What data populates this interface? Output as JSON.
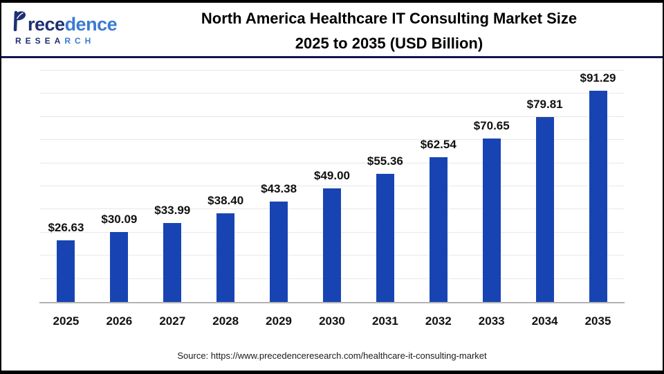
{
  "header": {
    "title_line1": "North America Healthcare IT Consulting Market Size",
    "title_line2": "2025 to 2035 (USD Billion)"
  },
  "logo": {
    "name": "Precedence",
    "name_part1": "rece",
    "name_part2": "dence",
    "sub_part1": "RESEA",
    "sub_part2": "RCH",
    "navy": "#1e2f72",
    "blue": "#3b7bd0"
  },
  "footer": {
    "source": "Source: https://www.precedenceresearch.com/healthcare-it-consulting-market"
  },
  "chart_data": {
    "type": "bar",
    "title": "North America Healthcare IT Consulting Market Size 2025 to 2035 (USD Billion)",
    "categories": [
      "2025",
      "2026",
      "2027",
      "2028",
      "2029",
      "2030",
      "2031",
      "2032",
      "2033",
      "2034",
      "2035"
    ],
    "values": [
      26.63,
      30.09,
      33.99,
      38.4,
      43.38,
      49.0,
      55.36,
      62.54,
      70.65,
      79.81,
      91.29
    ],
    "labels": [
      "$26.63",
      "$30.09",
      "$33.99",
      "$38.40",
      "$43.38",
      "$49.00",
      "$55.36",
      "$62.54",
      "$70.65",
      "$79.81",
      "$91.29"
    ],
    "xlabel": "",
    "ylabel": "",
    "ylim": [
      0,
      100
    ],
    "gridline_step": 10,
    "grid": true,
    "legend": false,
    "bar_color": "#1844b3",
    "grid_color": "#e8e8e8",
    "axis_color": "#b3b3b3"
  }
}
